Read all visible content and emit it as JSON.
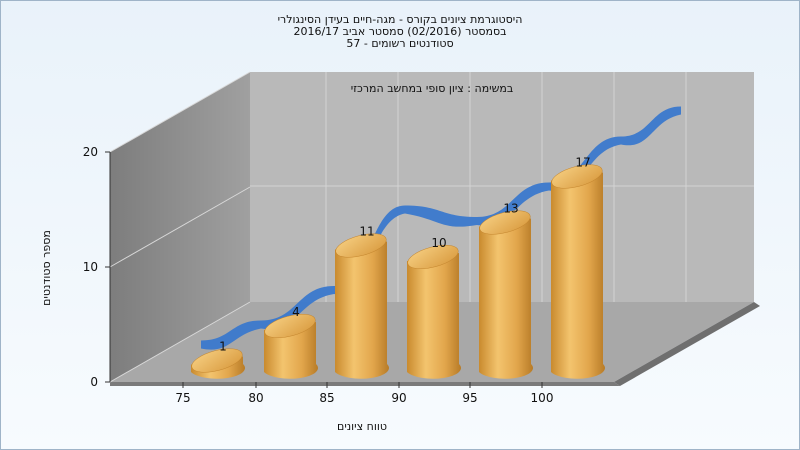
{
  "title_lines": [
    "היסטוגרמת ציונים בקורס - מגה-חיים בעידן הסינגולרי",
    "בסמסטר  (02/2016)  סמסטר אביב 2016/17",
    "סטודנטים רשומים - 57"
  ],
  "annotation": "במשימה : ציון סופי במחשב המרכזי",
  "chart_data": {
    "type": "bar",
    "title": "היסטוגרמת ציונים בקורס - מגה-חיים בעידן הסינגולרי",
    "xlabel": "טווח ציונים",
    "ylabel": "מספר סטודנטים",
    "x_ticks": [
      "75",
      "80",
      "85",
      "90",
      "95",
      "100"
    ],
    "y_ticks": [
      0,
      10,
      20
    ],
    "ylim": [
      0,
      20
    ],
    "values": [
      1,
      4,
      11,
      10,
      13,
      17
    ],
    "data_labels": [
      "1",
      "4",
      "11",
      "10",
      "13",
      "17"
    ],
    "trend_line": true,
    "grid": true,
    "colors": {
      "bar": "#e3a94a",
      "trend": "#3a78cc",
      "back_wall": "#b8b8b8",
      "side_wall": "#8e8e8e",
      "floor": "#a9a9a9"
    }
  }
}
